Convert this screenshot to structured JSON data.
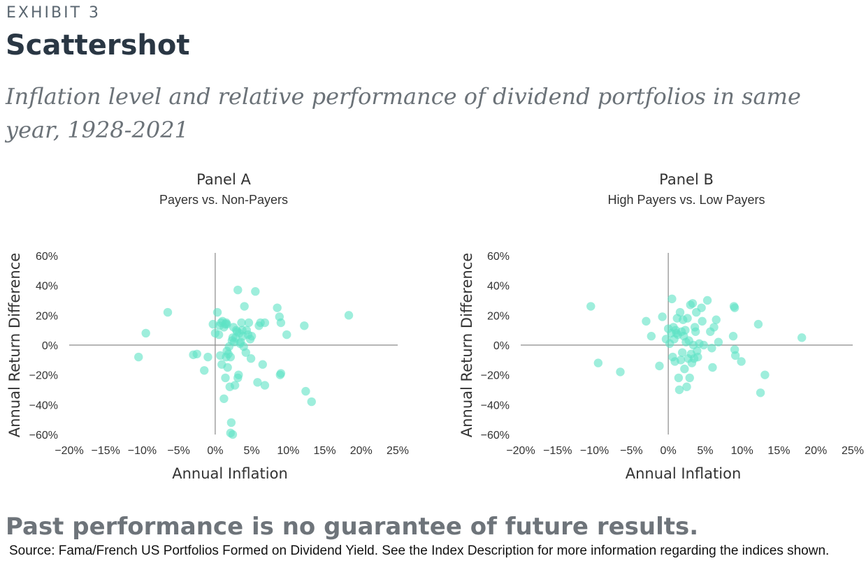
{
  "header": {
    "exhibit_label": "EXHIBIT 3",
    "title": "Scattershot",
    "subtitle": "Inflation level and relative performance of dividend portfolios in same year, 1928-2021"
  },
  "footer": {
    "warning": "Past performance is no guarantee of future results.",
    "source": "Source: Fama/French US Portfolios Formed on Dividend Yield. See the Index Description for more information regarding the indices shown."
  },
  "colors": {
    "point": "#5ee3c4",
    "axis": "#8a8a8a",
    "text": "#333333"
  },
  "chart_data": [
    {
      "type": "scatter",
      "title": "Panel A",
      "subtitle": "Payers vs. Non-Payers",
      "xlabel": "Annual Inflation",
      "ylabel": "Annual Return Difference",
      "xlim": [
        -20,
        25
      ],
      "ylim": [
        -60,
        60
      ],
      "x_ticks": [
        "−20%",
        "−15%",
        "−10%",
        "−5%",
        "0%",
        "5%",
        "10%",
        "15%",
        "20%",
        "25%"
      ],
      "y_ticks": [
        "60%",
        "40%",
        "20%",
        "0%",
        "−20%",
        "−40%",
        "−60%"
      ],
      "grid": false,
      "points": [
        [
          -10.5,
          -8
        ],
        [
          -9.5,
          8
        ],
        [
          -6.5,
          22
        ],
        [
          -3,
          -6.5
        ],
        [
          -2.5,
          -6
        ],
        [
          -1.5,
          -17
        ],
        [
          -1,
          -8
        ],
        [
          -0.3,
          14
        ],
        [
          0,
          8
        ],
        [
          0.3,
          22
        ],
        [
          0.5,
          7
        ],
        [
          0.6,
          13
        ],
        [
          0.8,
          15
        ],
        [
          1,
          16
        ],
        [
          1.2,
          12
        ],
        [
          1.4,
          14
        ],
        [
          1.5,
          15
        ],
        [
          1.6,
          14
        ],
        [
          0.7,
          -7
        ],
        [
          0.9,
          -13
        ],
        [
          1.2,
          -36
        ],
        [
          1.4,
          -22
        ],
        [
          1.5,
          -8
        ],
        [
          1.6,
          -4
        ],
        [
          1.7,
          -15
        ],
        [
          1.8,
          -6
        ],
        [
          1.9,
          -1
        ],
        [
          2,
          -28
        ],
        [
          2.1,
          -8
        ],
        [
          2.1,
          -59
        ],
        [
          2.2,
          -52
        ],
        [
          2.4,
          -60
        ],
        [
          2.3,
          3
        ],
        [
          2.4,
          5
        ],
        [
          2.5,
          12
        ],
        [
          2.6,
          2
        ],
        [
          2.7,
          -27
        ],
        [
          2.8,
          5
        ],
        [
          2.9,
          10
        ],
        [
          3,
          9
        ],
        [
          3.1,
          -22
        ],
        [
          3.2,
          -20
        ],
        [
          3.3,
          8
        ],
        [
          3.4,
          1
        ],
        [
          3.5,
          2
        ],
        [
          3.6,
          15
        ],
        [
          3.1,
          37
        ],
        [
          3.7,
          10
        ],
        [
          3.8,
          6
        ],
        [
          3.9,
          -1
        ],
        [
          4,
          26
        ],
        [
          4.2,
          -5
        ],
        [
          4.3,
          10
        ],
        [
          4.5,
          7
        ],
        [
          4.6,
          15
        ],
        [
          4.8,
          4
        ],
        [
          4.9,
          -9
        ],
        [
          5,
          6
        ],
        [
          5.5,
          36
        ],
        [
          5.8,
          -25
        ],
        [
          6,
          13
        ],
        [
          6.2,
          15
        ],
        [
          6.8,
          15
        ],
        [
          6.5,
          -13
        ],
        [
          6.8,
          -27
        ],
        [
          8.5,
          25
        ],
        [
          8.8,
          19
        ],
        [
          9,
          15
        ],
        [
          8.9,
          -20
        ],
        [
          9,
          -19
        ],
        [
          9.8,
          7
        ],
        [
          12.2,
          13
        ],
        [
          12.4,
          -31
        ],
        [
          13.2,
          -38
        ],
        [
          18.3,
          20
        ]
      ]
    },
    {
      "type": "scatter",
      "title": "Panel B",
      "subtitle": "High Payers vs. Low Payers",
      "xlabel": "Annual Inflation",
      "ylabel": "Annual Return Difference",
      "xlim": [
        -20,
        25
      ],
      "ylim": [
        -60,
        60
      ],
      "x_ticks": [
        "−20%",
        "−15%",
        "−10%",
        "−5%",
        "0%",
        "5%",
        "10%",
        "15%",
        "20%",
        "25%"
      ],
      "y_ticks": [
        "60%",
        "40%",
        "20%",
        "0%",
        "−20%",
        "−40%",
        "−60%"
      ],
      "grid": false,
      "points": [
        [
          -10.5,
          26
        ],
        [
          -9.5,
          -12
        ],
        [
          -6.5,
          -18
        ],
        [
          -3,
          16
        ],
        [
          -2.3,
          6
        ],
        [
          -1.2,
          -14
        ],
        [
          -0.8,
          19
        ],
        [
          -0.3,
          4
        ],
        [
          0,
          11
        ],
        [
          0.2,
          1
        ],
        [
          0.4,
          8
        ],
        [
          0.5,
          31
        ],
        [
          0.6,
          -8
        ],
        [
          0.7,
          12
        ],
        [
          0.8,
          4
        ],
        [
          0.9,
          -11
        ],
        [
          1,
          10
        ],
        [
          1.1,
          8
        ],
        [
          1.2,
          18
        ],
        [
          1.3,
          7
        ],
        [
          1.4,
          -22
        ],
        [
          1.5,
          -30
        ],
        [
          1.6,
          22
        ],
        [
          1.7,
          -10
        ],
        [
          1.8,
          9
        ],
        [
          1.9,
          -5
        ],
        [
          2,
          17
        ],
        [
          2.1,
          6
        ],
        [
          2.2,
          -16
        ],
        [
          2.3,
          10
        ],
        [
          2.4,
          2
        ],
        [
          2.5,
          -28
        ],
        [
          2.6,
          18
        ],
        [
          2.7,
          -9
        ],
        [
          2.8,
          3
        ],
        [
          2.9,
          -22
        ],
        [
          3,
          27
        ],
        [
          3.1,
          -6
        ],
        [
          3.2,
          -12
        ],
        [
          3.3,
          28
        ],
        [
          3.4,
          0
        ],
        [
          3.5,
          -9
        ],
        [
          3.6,
          12
        ],
        [
          3.7,
          9
        ],
        [
          3.8,
          22
        ],
        [
          3.9,
          -4
        ],
        [
          4,
          -8
        ],
        [
          4.2,
          1
        ],
        [
          4.5,
          25
        ],
        [
          4.6,
          16
        ],
        [
          4.8,
          0
        ],
        [
          5.3,
          30
        ],
        [
          5.7,
          9
        ],
        [
          5.9,
          -2
        ],
        [
          6,
          -15
        ],
        [
          6.2,
          12
        ],
        [
          6.5,
          17
        ],
        [
          6.8,
          2
        ],
        [
          8.8,
          6
        ],
        [
          8.9,
          26
        ],
        [
          9,
          25
        ],
        [
          9,
          -3
        ],
        [
          9.1,
          -7
        ],
        [
          9.9,
          -11
        ],
        [
          12.2,
          14
        ],
        [
          12.5,
          -32
        ],
        [
          13.1,
          -20
        ],
        [
          18.1,
          5
        ]
      ]
    }
  ]
}
